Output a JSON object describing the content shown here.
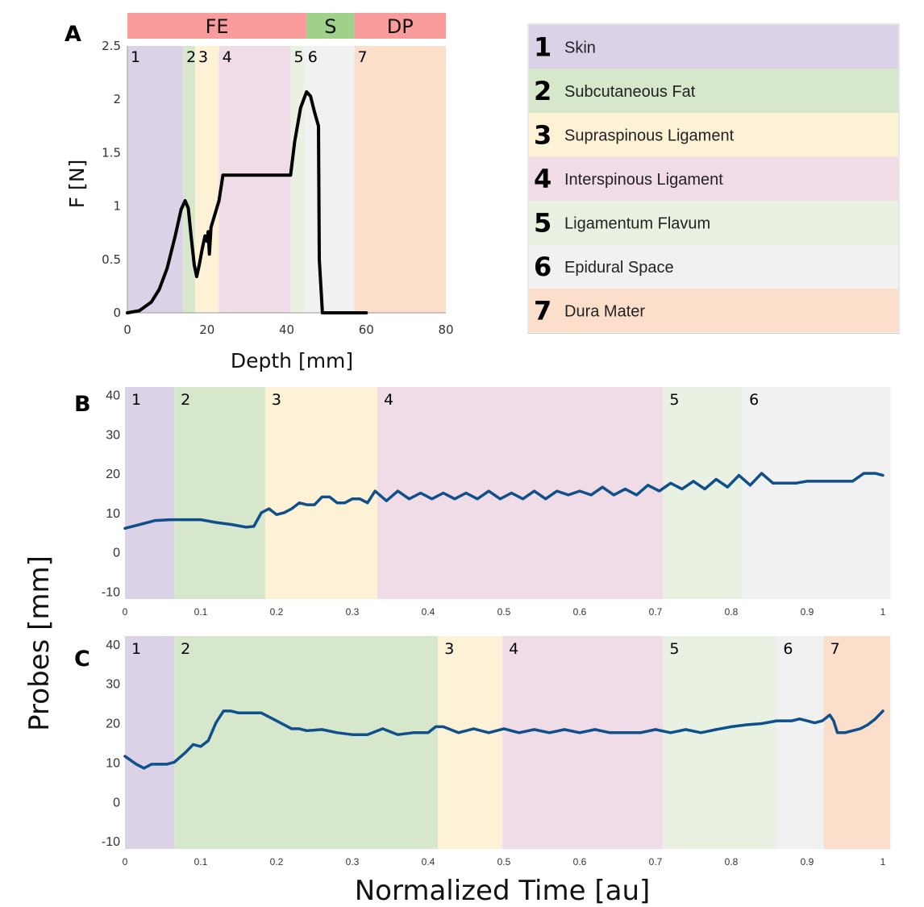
{
  "colors": {
    "skin": "#dcd2e8",
    "subcutaneous_fat": "#d6e7cb",
    "supraspinous": "#fdf2d6",
    "interspinous": "#efdce7",
    "ligamentum_flavum": "#e8f1e2",
    "epidural": "#f1f1f1",
    "dura": "#fbdfca",
    "phase_fe": "#fa9c9c",
    "phase_s": "#9fd18a",
    "phase_dp": "#fa9c9c",
    "curve_a": "#000000",
    "curve_bc": "#0e4f8c"
  },
  "legend": {
    "items": [
      {
        "num": "1",
        "label": "Skin",
        "color": "#dcd2e8"
      },
      {
        "num": "2",
        "label": "Subcutaneous Fat",
        "color": "#d6e7cb"
      },
      {
        "num": "3",
        "label": "Supraspinous Ligament",
        "color": "#fdf2d6"
      },
      {
        "num": "4",
        "label": "Interspinous Ligament",
        "color": "#efdce7"
      },
      {
        "num": "5",
        "label": "Ligamentum Flavum",
        "color": "#e8f1e2"
      },
      {
        "num": "6",
        "label": "Epidural Space",
        "color": "#f1f1f1"
      },
      {
        "num": "7",
        "label": "Dura Mater",
        "color": "#fbdfca"
      }
    ]
  },
  "chart_data": [
    {
      "panel": "A",
      "type": "line",
      "xlabel": "Depth [mm]",
      "ylabel": "F [N]",
      "xlim": [
        0,
        80
      ],
      "ylim": [
        0,
        2.5
      ],
      "xticks": [
        "0",
        "20",
        "40",
        "60",
        "80"
      ],
      "yticks": [
        "0",
        "0.5",
        "1",
        "1.5",
        "2",
        "2.5"
      ],
      "phases": [
        {
          "label": "FE",
          "start": 0,
          "end": 45,
          "color": "#fa9c9c"
        },
        {
          "label": "S",
          "start": 45,
          "end": 57,
          "color": "#9fd18a"
        },
        {
          "label": "DP",
          "start": 57,
          "end": 80,
          "color": "#fa9c9c"
        }
      ],
      "regions": [
        {
          "num": "1",
          "start": 0,
          "end": 14,
          "color": "#dcd2e8"
        },
        {
          "num": "2",
          "start": 14,
          "end": 17,
          "color": "#d6e7cb"
        },
        {
          "num": "3",
          "start": 17,
          "end": 23,
          "color": "#fdf2d6"
        },
        {
          "num": "4",
          "start": 23,
          "end": 41,
          "color": "#efdce7"
        },
        {
          "num": "5",
          "start": 41,
          "end": 44.5,
          "color": "#e8f1e2"
        },
        {
          "num": "6",
          "start": 44.5,
          "end": 57,
          "color": "#f1f1f1"
        },
        {
          "num": "7",
          "start": 57,
          "end": 80,
          "color": "#fbdfca"
        }
      ],
      "x": [
        0,
        3,
        6,
        8,
        10,
        12,
        13.5,
        14.5,
        15.3,
        16,
        16.8,
        17.4,
        18,
        18.8,
        19.5,
        20,
        20.3,
        20.6,
        21,
        23,
        24,
        30,
        38,
        41,
        42,
        43.5,
        45,
        46,
        47,
        48,
        48.2,
        49,
        55,
        60
      ],
      "y": [
        0,
        0.02,
        0.1,
        0.22,
        0.42,
        0.72,
        0.97,
        1.05,
        0.98,
        0.72,
        0.45,
        0.34,
        0.44,
        0.6,
        0.72,
        0.67,
        0.76,
        0.55,
        0.8,
        1.05,
        1.29,
        1.29,
        1.29,
        1.29,
        1.6,
        1.92,
        2.07,
        2.03,
        1.88,
        1.75,
        0.5,
        0.0,
        0.0,
        0.0
      ]
    },
    {
      "panel": "B",
      "type": "line",
      "xlabel": "Normalized Time [au]",
      "ylabel": "Probes [mm]",
      "xlim": [
        0,
        1
      ],
      "ylim": [
        -12,
        42
      ],
      "xticks": [
        "0",
        "0.1",
        "0.2",
        "0.3",
        "0.4",
        "0.5",
        "0.6",
        "0.7",
        "0.8",
        "0.9",
        "1"
      ],
      "yticks": [
        "-10",
        "0",
        "10",
        "20",
        "30",
        "40"
      ],
      "regions": [
        {
          "num": "1",
          "start": 0,
          "end": 0.065,
          "color": "#dcd2e8"
        },
        {
          "num": "2",
          "start": 0.065,
          "end": 0.185,
          "color": "#d6e7cb"
        },
        {
          "num": "3",
          "start": 0.185,
          "end": 0.333,
          "color": "#fdf2d6"
        },
        {
          "num": "4",
          "start": 0.333,
          "end": 0.71,
          "color": "#efdce7"
        },
        {
          "num": "5",
          "start": 0.71,
          "end": 0.815,
          "color": "#e8f1e2"
        },
        {
          "num": "6",
          "start": 0.815,
          "end": 1.01,
          "color": "#f1f1f1"
        }
      ],
      "x": [
        0,
        0.02,
        0.04,
        0.06,
        0.08,
        0.1,
        0.12,
        0.14,
        0.16,
        0.17,
        0.18,
        0.19,
        0.2,
        0.21,
        0.22,
        0.23,
        0.24,
        0.25,
        0.26,
        0.27,
        0.28,
        0.29,
        0.3,
        0.31,
        0.32,
        0.33,
        0.345,
        0.36,
        0.375,
        0.39,
        0.405,
        0.42,
        0.435,
        0.45,
        0.465,
        0.48,
        0.495,
        0.51,
        0.525,
        0.54,
        0.555,
        0.57,
        0.585,
        0.6,
        0.615,
        0.63,
        0.645,
        0.66,
        0.675,
        0.69,
        0.705,
        0.72,
        0.735,
        0.75,
        0.765,
        0.78,
        0.795,
        0.81,
        0.825,
        0.84,
        0.855,
        0.87,
        0.885,
        0.9,
        0.915,
        0.93,
        0.945,
        0.96,
        0.975,
        0.98,
        0.99,
        1.0
      ],
      "y": [
        6,
        7,
        8,
        8.2,
        8.2,
        8.2,
        7.5,
        7,
        6.3,
        6.5,
        10,
        11,
        9.5,
        10,
        11,
        12.5,
        12,
        12,
        14,
        14,
        12.5,
        12.5,
        13.5,
        13.5,
        12.5,
        15.5,
        13,
        15.5,
        13.5,
        15,
        13.5,
        15,
        13.5,
        15,
        13.5,
        15.5,
        13.5,
        15,
        13.5,
        15.5,
        13.5,
        15.5,
        14.5,
        15.5,
        14.5,
        16.5,
        14.5,
        16,
        14.5,
        17,
        15.5,
        17.5,
        16,
        18,
        16,
        18.5,
        16.5,
        19.5,
        17,
        20,
        17.5,
        17.5,
        17.5,
        18,
        18,
        18,
        18,
        18,
        20,
        20,
        20,
        19.5
      ]
    },
    {
      "panel": "C",
      "type": "line",
      "xlabel": "Normalized Time [au]",
      "ylabel": "Probes [mm]",
      "xlim": [
        0,
        1
      ],
      "ylim": [
        -12,
        42
      ],
      "xticks": [
        "0",
        "0.1",
        "0.2",
        "0.3",
        "0.4",
        "0.5",
        "0.6",
        "0.7",
        "0.8",
        "0.9",
        "1"
      ],
      "yticks": [
        "-10",
        "0",
        "10",
        "20",
        "30",
        "40"
      ],
      "regions": [
        {
          "num": "1",
          "start": 0,
          "end": 0.065,
          "color": "#dcd2e8"
        },
        {
          "num": "2",
          "start": 0.065,
          "end": 0.413,
          "color": "#d6e7cb"
        },
        {
          "num": "3",
          "start": 0.413,
          "end": 0.498,
          "color": "#fdf2d6"
        },
        {
          "num": "4",
          "start": 0.498,
          "end": 0.71,
          "color": "#efdce7"
        },
        {
          "num": "5",
          "start": 0.71,
          "end": 0.86,
          "color": "#e8f1e2"
        },
        {
          "num": "6",
          "start": 0.86,
          "end": 0.922,
          "color": "#f1f1f1"
        },
        {
          "num": "7",
          "start": 0.922,
          "end": 1.01,
          "color": "#fbdfca"
        }
      ],
      "x": [
        0,
        0.015,
        0.025,
        0.035,
        0.045,
        0.055,
        0.065,
        0.08,
        0.09,
        0.1,
        0.11,
        0.12,
        0.13,
        0.14,
        0.15,
        0.16,
        0.17,
        0.18,
        0.2,
        0.22,
        0.23,
        0.24,
        0.26,
        0.28,
        0.3,
        0.32,
        0.34,
        0.36,
        0.38,
        0.4,
        0.41,
        0.42,
        0.44,
        0.46,
        0.48,
        0.5,
        0.52,
        0.54,
        0.56,
        0.58,
        0.6,
        0.62,
        0.64,
        0.66,
        0.68,
        0.7,
        0.72,
        0.74,
        0.76,
        0.78,
        0.8,
        0.82,
        0.84,
        0.86,
        0.87,
        0.88,
        0.89,
        0.9,
        0.91,
        0.92,
        0.93,
        0.935,
        0.94,
        0.95,
        0.96,
        0.97,
        0.98,
        0.99,
        1.0
      ],
      "y": [
        11.5,
        9.5,
        8.5,
        9.5,
        9.5,
        9.5,
        10,
        12.5,
        14.5,
        14,
        15.5,
        20,
        23,
        23,
        22.5,
        22.5,
        22.5,
        22.5,
        20.5,
        18.5,
        18.5,
        18,
        18.3,
        17.5,
        17,
        17,
        18.5,
        17,
        17.5,
        17.5,
        19,
        19,
        17.5,
        18.5,
        17.5,
        18.5,
        17.5,
        18.3,
        17.5,
        18.3,
        17.5,
        18.3,
        17.5,
        17.5,
        17.5,
        18.3,
        17.5,
        18.3,
        17.5,
        18.3,
        19,
        19.5,
        19.8,
        20.5,
        20.5,
        20.5,
        21,
        20.5,
        20,
        20.5,
        22,
        20.5,
        17.5,
        17.5,
        18,
        18.5,
        19.5,
        21,
        23
      ]
    }
  ]
}
